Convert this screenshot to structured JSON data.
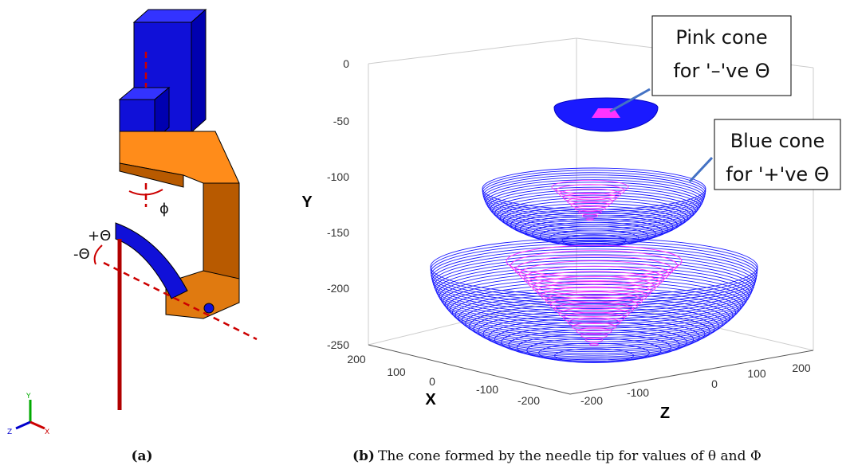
{
  "panel_a": {
    "labels": {
      "phi": "ϕ",
      "plus_theta": "+Θ",
      "minus_theta": "-Θ"
    },
    "triad": {
      "y": "Y",
      "z": "Z",
      "x": "X"
    },
    "caption": "(a)"
  },
  "panel_b": {
    "y_axis": {
      "label": "Y",
      "ticks": [
        "0",
        "-50",
        "-100",
        "-150",
        "-200",
        "-250"
      ]
    },
    "x_axis": {
      "label": "X",
      "ticks": [
        "200",
        "100",
        "0",
        "-100",
        "-200"
      ]
    },
    "z_axis": {
      "label": "Z",
      "ticks": [
        "-200",
        "-100",
        "0",
        "100",
        "200"
      ]
    },
    "annotations": [
      [
        "Pink cone",
        "for '–'ve Θ"
      ],
      [
        "Blue cone",
        "for '+'ve Θ"
      ]
    ],
    "caption": {
      "label": "(b)",
      "text": "The cone formed by the needle tip for values of θ and Φ"
    }
  }
}
